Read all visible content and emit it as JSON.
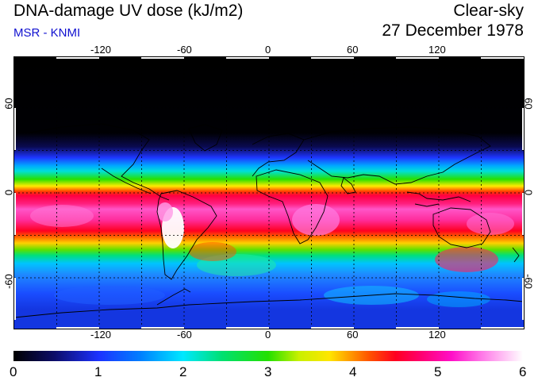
{
  "header": {
    "title": "DNA-damage UV dose (kJ/m2)",
    "source": "MSR - KNMI",
    "condition": "Clear-sky",
    "date": "27 December 1978"
  },
  "map": {
    "longitude_ticks": [
      "-120",
      "-60",
      "0",
      "60",
      "120"
    ],
    "latitude_ticks": [
      "60",
      "0",
      "-60"
    ],
    "projection": "equirectangular",
    "coastline_color": "#000000",
    "gridline_style": "dotted-black"
  },
  "colorbar": {
    "labels": [
      "0",
      "1",
      "2",
      "3",
      "4",
      "5",
      "6"
    ],
    "min": 0,
    "max": 6,
    "colors": [
      "#000000",
      "#1c32ff",
      "#00e8ff",
      "#23e000",
      "#ffe600",
      "#ff0020",
      "#ff10c8",
      "#ffffff"
    ]
  }
}
